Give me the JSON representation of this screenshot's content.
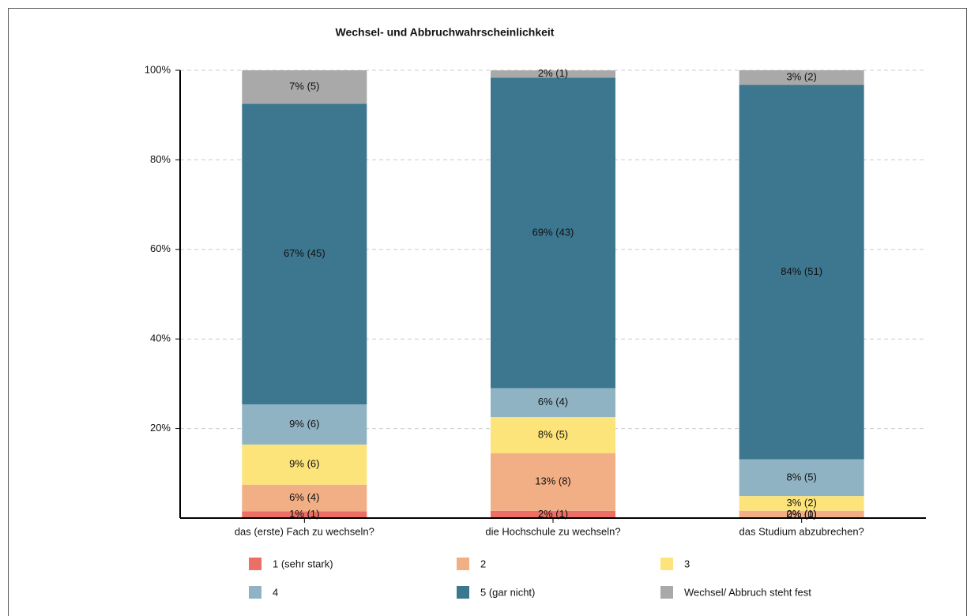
{
  "chart_data": {
    "type": "stacked_bar",
    "title": "Wechsel- und Abbruchwahrscheinlichkeit",
    "categories": [
      "das (erste) Fach zu wechseln?",
      "die Hochschule zu wechseln?",
      "das Studium abzubrechen?"
    ],
    "series": [
      {
        "name": "1 (sehr stark)",
        "color": "#ec6f66",
        "values": [
          1.49,
          1.61,
          0
        ],
        "value_labels": [
          "1% (1)",
          "2% (1)",
          "0% (0)"
        ]
      },
      {
        "name": "2",
        "color": "#f2af86",
        "values": [
          5.97,
          12.9,
          1.64
        ],
        "value_labels": [
          "6% (4)",
          "13% (8)",
          "2% (1)"
        ]
      },
      {
        "name": "3",
        "color": "#fde47a",
        "values": [
          8.96,
          8.06,
          3.28
        ],
        "value_labels": [
          "9% (6)",
          "8% (5)",
          "3% (2)"
        ]
      },
      {
        "name": "4",
        "color": "#90b3c4",
        "values": [
          8.96,
          6.45,
          8.2
        ],
        "value_labels": [
          "9% (6)",
          "6% (4)",
          "8% (5)"
        ]
      },
      {
        "name": "5 (gar nicht)",
        "color": "#3c768f",
        "values": [
          67.16,
          69.35,
          83.61
        ],
        "value_labels": [
          "67% (45)",
          "69% (43)",
          "84% (51)"
        ]
      },
      {
        "name": "Wechsel/ Abbruch steht fest",
        "color": "#a9a9a9",
        "values": [
          7.46,
          1.61,
          3.28
        ],
        "value_labels": [
          "7% (5)",
          "2% (1)",
          "3% (2)"
        ]
      }
    ],
    "ylim": [
      0,
      100
    ],
    "yticks": [
      {
        "value": 20,
        "label": "20%"
      },
      {
        "value": 40,
        "label": "40%"
      },
      {
        "value": 60,
        "label": "60%"
      },
      {
        "value": 80,
        "label": "80%"
      },
      {
        "value": 100,
        "label": "100%"
      }
    ],
    "grid": true
  }
}
